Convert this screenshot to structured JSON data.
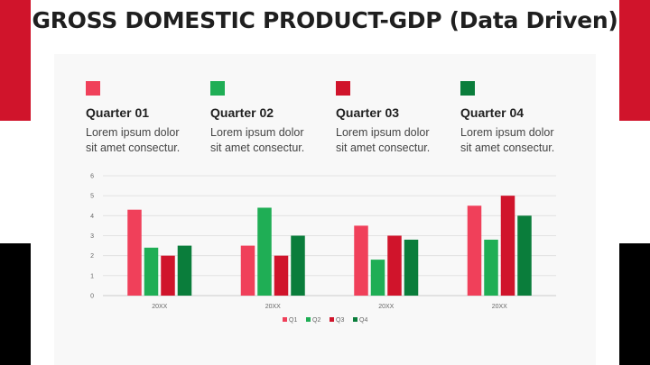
{
  "title": "GROSS DOMESTIC PRODUCT-GDP (Data Driven)",
  "colors": {
    "accent_red": "#d0142b",
    "q1": "#f0405a",
    "q2": "#1fae55",
    "q3": "#d0142b",
    "q4": "#0a7d3b"
  },
  "quarters": [
    {
      "title": "Quarter 01",
      "desc_line1": "Lorem ipsum dolor",
      "desc_line2": "sit amet consectur.",
      "color": "#f0405a"
    },
    {
      "title": "Quarter 02",
      "desc_line1": "Lorem ipsum dolor",
      "desc_line2": "sit amet consectur.",
      "color": "#1fae55"
    },
    {
      "title": "Quarter 03",
      "desc_line1": "Lorem ipsum dolor",
      "desc_line2": "sit amet consectur.",
      "color": "#d0142b"
    },
    {
      "title": "Quarter 04",
      "desc_line1": "Lorem ipsum dolor",
      "desc_line2": "sit amet consectur.",
      "color": "#0a7d3b"
    }
  ],
  "chart_data": {
    "type": "bar",
    "categories": [
      "20XX",
      "20XX",
      "20XX",
      "20XX"
    ],
    "series": [
      {
        "name": "Q1",
        "values": [
          4.3,
          2.5,
          3.5,
          4.5
        ],
        "color": "#f0405a"
      },
      {
        "name": "Q2",
        "values": [
          2.4,
          4.4,
          1.8,
          2.8
        ],
        "color": "#1fae55"
      },
      {
        "name": "Q3",
        "values": [
          2.0,
          2.0,
          3.0,
          5.0
        ],
        "color": "#d0142b"
      },
      {
        "name": "Q4",
        "values": [
          2.5,
          3.0,
          2.8,
          4.0
        ],
        "color": "#0a7d3b"
      }
    ],
    "ylim": [
      0,
      6
    ],
    "yticks": [
      0,
      1,
      2,
      3,
      4,
      5,
      6
    ],
    "grid": true,
    "legend_position": "bottom"
  }
}
